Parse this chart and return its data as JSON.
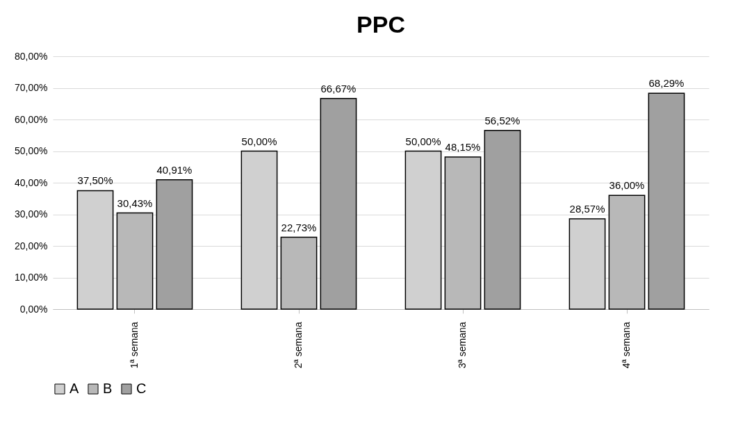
{
  "chart_data": {
    "type": "bar",
    "title": "PPC",
    "categories": [
      "1ª semana",
      "2ª semana",
      "3ª semana",
      "4ª semana"
    ],
    "series": [
      {
        "name": "A",
        "color": "#d0d0d0",
        "values": [
          37.5,
          50,
          50,
          28.57
        ],
        "value_labels": [
          "37,50%",
          "50,00%",
          "50,00%",
          "28,57%"
        ]
      },
      {
        "name": "B",
        "color": "#b8b8b8",
        "values": [
          30.43,
          22.73,
          48.15,
          36
        ],
        "value_labels": [
          "30,43%",
          "22,73%",
          "48,15%",
          "36,00%"
        ]
      },
      {
        "name": "C",
        "color": "#a0a0a0",
        "values": [
          40.91,
          66.67,
          56.52,
          68.29
        ],
        "value_labels": [
          "40,91%",
          "66,67%",
          "56,52%",
          "68,29%"
        ]
      }
    ],
    "ylim": [
      0,
      80
    ],
    "yticks": [
      {
        "value": 0,
        "label": "0,00%"
      },
      {
        "value": 10,
        "label": "10,00%"
      },
      {
        "value": 20,
        "label": "20,00%"
      },
      {
        "value": 30,
        "label": "30,00%"
      },
      {
        "value": 40,
        "label": "40,00%"
      },
      {
        "value": 50,
        "label": "50,00%"
      },
      {
        "value": 60,
        "label": "60,00%"
      },
      {
        "value": 70,
        "label": "70,00%"
      },
      {
        "value": 80,
        "label": "80,00%"
      }
    ],
    "grid": "y",
    "legend": "bottom"
  }
}
